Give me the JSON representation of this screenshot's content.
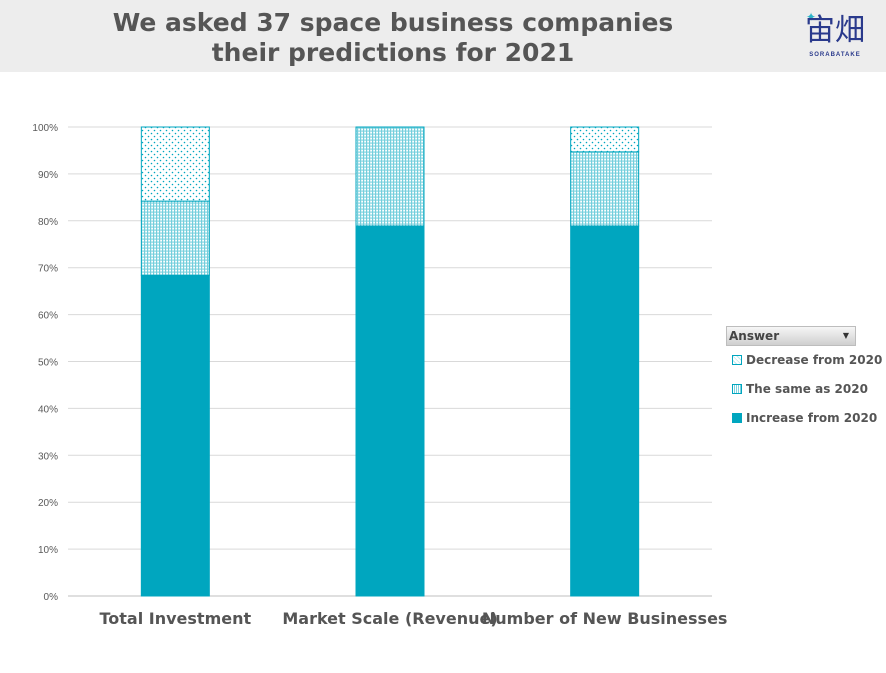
{
  "header": {
    "title_line1": "We asked 37 space business companies",
    "title_line2": "their predictions for 2021",
    "logo_text": "宙畑",
    "logo_subtext": "SORABATAKE",
    "logo_spark": "✦"
  },
  "legend": {
    "header": "Answer",
    "dropdown_icon": "▼",
    "items": [
      "Decrease from 2020",
      "The same as 2020",
      "Increase from 2020"
    ]
  },
  "colors": {
    "increase": "#00a6bf",
    "same": "#00a6bf",
    "decrease": "#00a6bf",
    "grid": "#d9d9d9",
    "axis_text": "#595959"
  },
  "chart_data": {
    "type": "bar",
    "stacked": true,
    "percent": true,
    "categories": [
      "Total Investment",
      "Market Scale (Revenue)",
      "Number of New Businesses"
    ],
    "series": [
      {
        "name": "Increase from 2020",
        "values": [
          68.4,
          78.9,
          78.9
        ],
        "fill": "solid"
      },
      {
        "name": "The same as 2020",
        "values": [
          15.8,
          21.1,
          15.8
        ],
        "fill": "dense-pattern"
      },
      {
        "name": "Decrease from 2020",
        "values": [
          15.8,
          0,
          5.3
        ],
        "fill": "dotted-pattern"
      }
    ],
    "ylim": [
      0,
      100
    ],
    "yticks": [
      "0%",
      "10%",
      "20%",
      "30%",
      "40%",
      "50%",
      "60%",
      "70%",
      "80%",
      "90%",
      "100%"
    ],
    "grid": true,
    "legend_position": "right"
  }
}
